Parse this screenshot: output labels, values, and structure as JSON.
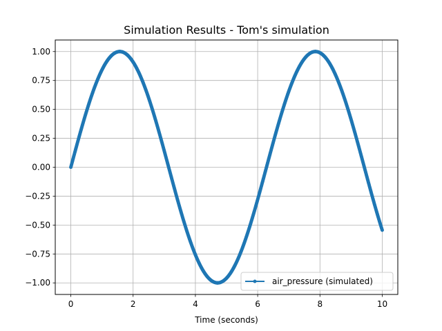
{
  "chart_data": {
    "type": "line",
    "title": "Simulation Results - Tom's simulation",
    "xlabel": "Time (seconds)",
    "ylabel": "",
    "xlim": [
      -0.5,
      10.5
    ],
    "ylim": [
      -1.1,
      1.1
    ],
    "x_ticks": [
      0,
      2,
      4,
      6,
      8,
      10
    ],
    "x_tick_labels": [
      "0",
      "2",
      "4",
      "6",
      "8",
      "10"
    ],
    "y_ticks": [
      -1.0,
      -0.75,
      -0.5,
      -0.25,
      0.0,
      0.25,
      0.5,
      0.75,
      1.0
    ],
    "y_tick_labels": [
      "−1.00",
      "−0.75",
      "−0.50",
      "−0.25",
      "0.00",
      "0.25",
      "0.50",
      "0.75",
      "1.00"
    ],
    "grid": true,
    "legend_position": "lower-right",
    "series": [
      {
        "name": "air_pressure (simulated)",
        "color": "#1f77b4",
        "marker": "circle",
        "function": "sin(t)",
        "x_start": 0,
        "x_end": 10,
        "step": 0.01,
        "points_sample": [
          [
            0,
            0.0
          ],
          [
            1,
            0.84
          ],
          [
            1.57,
            1.0
          ],
          [
            2,
            0.91
          ],
          [
            3,
            0.14
          ],
          [
            4,
            -0.76
          ],
          [
            4.71,
            -1.0
          ],
          [
            5,
            -0.96
          ],
          [
            6,
            -0.28
          ],
          [
            7,
            0.66
          ],
          [
            7.85,
            1.0
          ],
          [
            8,
            0.99
          ],
          [
            9,
            0.41
          ],
          [
            10,
            -0.54
          ]
        ]
      }
    ]
  }
}
